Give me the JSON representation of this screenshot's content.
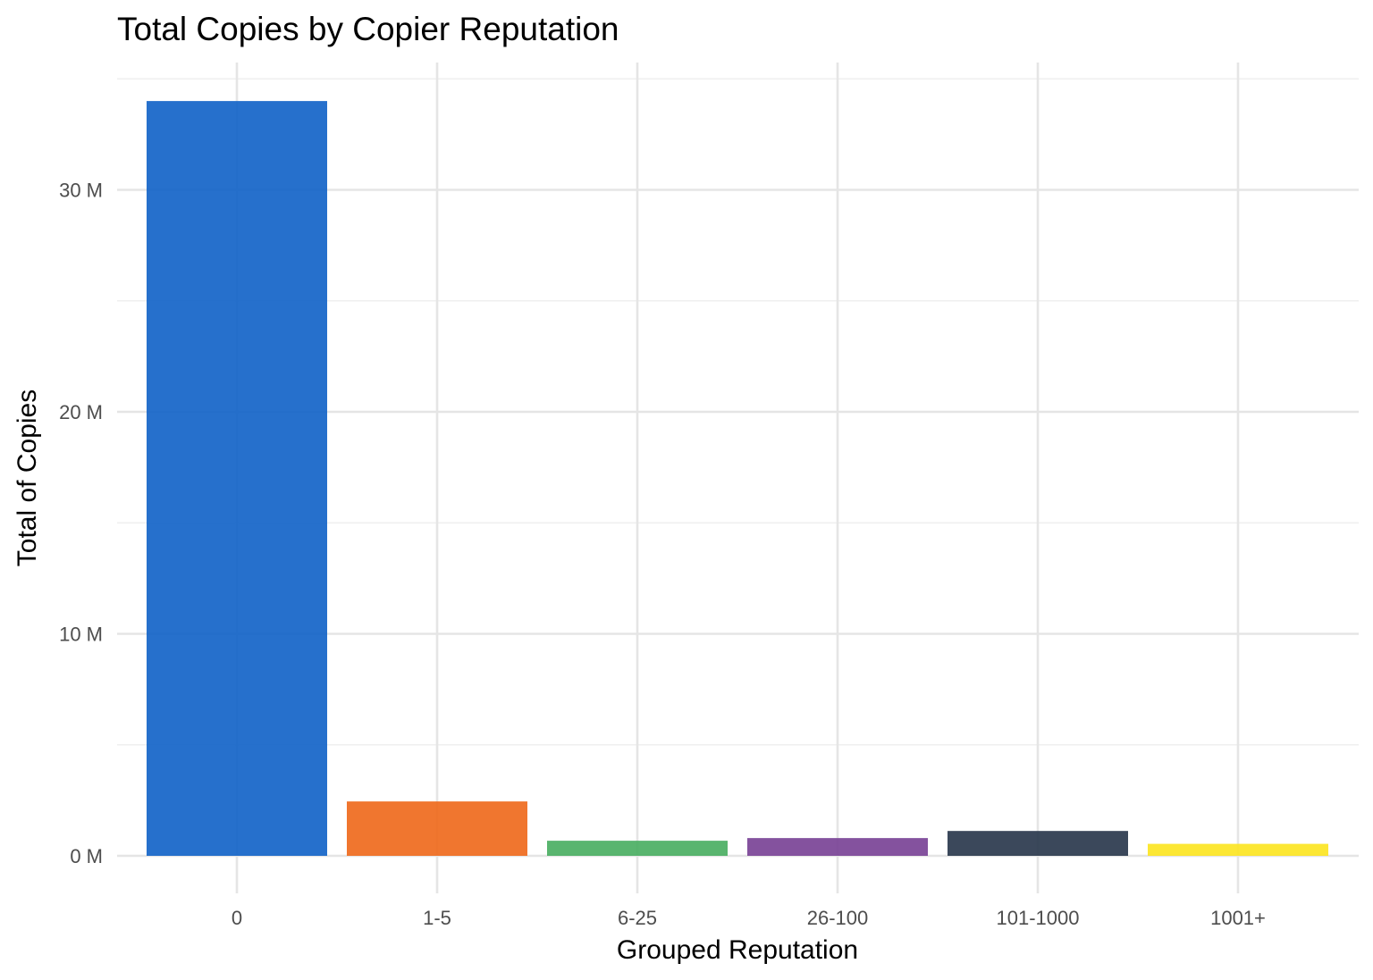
{
  "chart_data": {
    "type": "bar",
    "title": "Total Copies by Copier Reputation",
    "xlabel": "Grouped Reputation",
    "ylabel": "Total of Copies",
    "categories": [
      "0",
      "1-5",
      "6-25",
      "26-100",
      "101-1000",
      "1001+"
    ],
    "values": [
      34000000,
      2450000,
      680000,
      800000,
      1120000,
      540000
    ],
    "colors": [
      "#1565c8",
      "#ef6c1f",
      "#4caf64",
      "#7b4597",
      "#2c3a4f",
      "#fce525"
    ],
    "ylim": [
      0,
      34000000
    ],
    "yticks": [
      0,
      10000000,
      20000000,
      30000000
    ],
    "ytick_labels": [
      "0 M",
      "10 M",
      "20 M",
      "30 M"
    ],
    "grid": true,
    "legend": "none"
  }
}
